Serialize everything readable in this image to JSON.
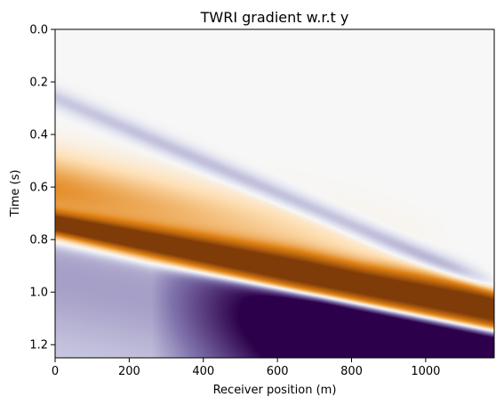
{
  "chart_data": {
    "type": "heatmap",
    "title": "TWRI gradient w.r.t y",
    "xlabel": "Receiver position (m)",
    "ylabel": "Time (s)",
    "xlim": [
      0,
      1185
    ],
    "ylim": [
      1.25,
      0.0
    ],
    "y_axis_inverted": true,
    "x_ticks": [
      0,
      200,
      400,
      600,
      800,
      1000
    ],
    "x_tick_labels": [
      "0",
      "200",
      "400",
      "600",
      "800",
      "1000"
    ],
    "y_ticks": [
      0.0,
      0.2,
      0.4,
      0.6,
      0.8,
      1.0,
      1.2
    ],
    "y_tick_labels": [
      "0.0",
      "0.2",
      "0.4",
      "0.6",
      "0.8",
      "1.0",
      "1.2"
    ],
    "colormap": "PuOr",
    "colormap_stops": [
      {
        "v": -1.0,
        "color": "#2d004b"
      },
      {
        "v": -0.5,
        "color": "#8073ac"
      },
      {
        "v": -0.15,
        "color": "#d8daeb"
      },
      {
        "v": 0.0,
        "color": "#f7f7f7"
      },
      {
        "v": 0.15,
        "color": "#fee0b6"
      },
      {
        "v": 0.5,
        "color": "#e08214"
      },
      {
        "v": 1.0,
        "color": "#7f3b08"
      }
    ],
    "grid": false,
    "features": [
      {
        "name": "precursor-purple-band",
        "sign": -1,
        "amplitude": 0.35,
        "t_at_x0": 0.26,
        "t_at_xmax": 0.98
      },
      {
        "name": "orange-band",
        "sign": 1,
        "amplitude": 1.0,
        "t_at_x0": 0.74,
        "t_at_xmax": 1.07
      },
      {
        "name": "purple-region",
        "sign": -1,
        "amplitude": 1.0,
        "t_at_x0": 0.82,
        "t_at_xmax": 1.16
      }
    ]
  }
}
